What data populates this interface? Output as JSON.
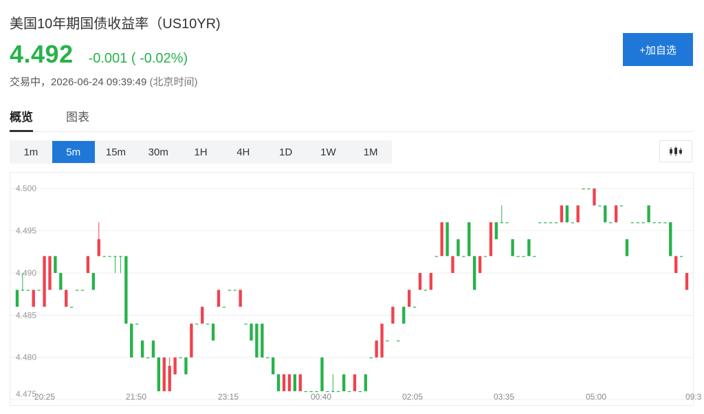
{
  "header": {
    "title": "美国10年期国债收益率（US10YR)",
    "price": "4.492",
    "change": "-0.001 ( -0.02%)",
    "status": "交易中，2026-06-24 09:39:49",
    "timezone": "(北京时间)",
    "add_label": "+加自选"
  },
  "tabs": [
    {
      "label": "概览",
      "active": true
    },
    {
      "label": "图表",
      "active": false
    }
  ],
  "timeframes": [
    {
      "label": "1m",
      "active": false
    },
    {
      "label": "5m",
      "active": true
    },
    {
      "label": "15m",
      "active": false
    },
    {
      "label": "30m",
      "active": false
    },
    {
      "label": "1H",
      "active": false
    },
    {
      "label": "4H",
      "active": false
    },
    {
      "label": "1D",
      "active": false
    },
    {
      "label": "1W",
      "active": false
    },
    {
      "label": "1M",
      "active": false
    }
  ],
  "icons": {
    "chart_type": "candlestick-icon"
  },
  "colors": {
    "up": "#f0424e",
    "down": "#27b24a",
    "accent": "#1f78d8"
  },
  "chart_data": {
    "type": "candlestick",
    "y_ticks": [
      "4.500",
      "4.495",
      "4.490",
      "4.485",
      "4.480",
      "4.475"
    ],
    "x_ticks": [
      "20:25",
      "21:50",
      "23:15",
      "00:40",
      "02:05",
      "03:35",
      "05:00",
      "09:3"
    ],
    "ylim": [
      4.4755,
      4.5005
    ],
    "grid": true,
    "candles": [
      [
        4.488,
        4.486,
        4.488,
        4.486
      ],
      [
        4.488,
        4.488,
        4.49,
        4.488
      ],
      [
        4.488,
        4.488,
        4.488,
        4.488
      ],
      [
        4.486,
        4.488,
        4.488,
        4.486
      ],
      [
        4.488,
        4.488,
        4.488,
        4.488
      ],
      [
        4.486,
        4.492,
        4.492,
        4.486
      ],
      [
        4.488,
        4.492,
        4.492,
        4.488
      ],
      [
        4.492,
        4.49,
        4.492,
        4.49
      ],
      [
        4.49,
        4.488,
        4.49,
        4.488
      ],
      [
        4.486,
        4.488,
        4.488,
        4.486
      ],
      [
        4.486,
        4.486,
        4.486,
        4.486
      ],
      [
        4.488,
        4.488,
        4.488,
        4.488
      ],
      [
        4.488,
        4.488,
        4.488,
        4.488
      ],
      [
        4.49,
        4.492,
        4.492,
        4.49
      ],
      [
        4.49,
        4.488,
        4.49,
        4.488
      ],
      [
        4.492,
        4.494,
        4.496,
        4.492
      ],
      [
        4.492,
        4.492,
        4.492,
        4.492
      ],
      [
        4.492,
        4.492,
        4.492,
        4.492
      ],
      [
        4.492,
        4.492,
        4.492,
        4.49
      ],
      [
        4.492,
        4.492,
        4.492,
        4.49
      ],
      [
        4.492,
        4.484,
        4.492,
        4.484
      ],
      [
        4.484,
        4.48,
        4.484,
        4.48
      ],
      [
        4.484,
        4.484,
        4.484,
        4.484
      ],
      [
        4.482,
        4.48,
        4.482,
        4.48
      ],
      [
        4.48,
        4.48,
        4.48,
        4.48
      ],
      [
        4.482,
        4.48,
        4.482,
        4.48
      ],
      [
        4.48,
        4.476,
        4.48,
        4.476
      ],
      [
        4.476,
        4.48,
        4.48,
        4.476
      ],
      [
        4.476,
        4.479,
        4.48,
        4.476
      ],
      [
        4.478,
        4.48,
        4.48,
        4.478
      ],
      [
        4.48,
        4.48,
        4.48,
        4.48
      ],
      [
        4.48,
        4.478,
        4.48,
        4.478
      ],
      [
        4.48,
        4.484,
        4.484,
        4.48
      ],
      [
        4.484,
        4.484,
        4.484,
        4.484
      ],
      [
        4.484,
        4.486,
        4.486,
        4.484
      ],
      [
        4.484,
        4.484,
        4.484,
        4.484
      ],
      [
        4.484,
        4.482,
        4.484,
        4.482
      ],
      [
        4.486,
        4.488,
        4.488,
        4.486
      ],
      [
        4.486,
        4.486,
        4.486,
        4.486
      ],
      [
        4.488,
        4.488,
        4.488,
        4.488
      ],
      [
        4.488,
        4.488,
        4.488,
        4.488
      ],
      [
        4.486,
        4.488,
        4.488,
        4.486
      ],
      [
        4.484,
        4.484,
        4.484,
        4.484
      ],
      [
        4.484,
        4.482,
        4.484,
        4.482
      ],
      [
        4.484,
        4.48,
        4.484,
        4.48
      ],
      [
        4.484,
        4.48,
        4.484,
        4.48
      ],
      [
        4.48,
        4.48,
        4.48,
        4.48
      ],
      [
        4.48,
        4.478,
        4.48,
        4.478
      ],
      [
        4.478,
        4.476,
        4.478,
        4.476
      ],
      [
        4.476,
        4.478,
        4.478,
        4.476
      ],
      [
        4.476,
        4.478,
        4.478,
        4.476
      ],
      [
        4.478,
        4.476,
        4.478,
        4.476
      ],
      [
        4.476,
        4.478,
        4.478,
        4.476
      ],
      [
        4.476,
        4.476,
        4.476,
        4.476
      ],
      [
        4.476,
        4.476,
        4.476,
        4.476
      ],
      [
        4.476,
        4.476,
        4.476,
        4.476
      ],
      [
        4.48,
        4.476,
        4.48,
        4.476
      ],
      [
        4.476,
        4.476,
        4.476,
        4.476
      ],
      [
        4.476,
        4.476,
        4.478,
        4.476
      ],
      [
        4.476,
        4.476,
        4.476,
        4.476
      ],
      [
        4.478,
        4.476,
        4.478,
        4.476
      ],
      [
        4.476,
        4.476,
        4.476,
        4.476
      ],
      [
        4.476,
        4.478,
        4.478,
        4.476
      ],
      [
        4.476,
        4.476,
        4.476,
        4.476
      ],
      [
        4.478,
        4.476,
        4.478,
        4.476
      ],
      [
        4.48,
        4.48,
        4.48,
        4.48
      ],
      [
        4.48,
        4.482,
        4.482,
        4.48
      ],
      [
        4.48,
        4.484,
        4.484,
        4.48
      ],
      [
        4.482,
        4.482,
        4.482,
        4.482
      ],
      [
        4.484,
        4.486,
        4.486,
        4.484
      ],
      [
        4.482,
        4.482,
        4.482,
        4.482
      ],
      [
        4.486,
        4.484,
        4.486,
        4.484
      ],
      [
        4.486,
        4.488,
        4.488,
        4.486
      ],
      [
        4.486,
        4.486,
        4.486,
        4.486
      ],
      [
        4.488,
        4.49,
        4.49,
        4.488
      ],
      [
        4.488,
        4.488,
        4.488,
        4.488
      ],
      [
        4.488,
        4.49,
        4.49,
        4.488
      ],
      [
        4.492,
        4.492,
        4.492,
        4.492
      ],
      [
        4.492,
        4.496,
        4.496,
        4.492
      ],
      [
        4.496,
        4.492,
        4.496,
        4.492
      ],
      [
        4.49,
        4.492,
        4.492,
        4.49
      ],
      [
        4.494,
        4.492,
        4.494,
        4.492
      ],
      [
        4.492,
        4.492,
        4.492,
        4.492
      ],
      [
        4.496,
        4.492,
        4.496,
        4.492
      ],
      [
        4.492,
        4.488,
        4.492,
        4.488
      ],
      [
        4.49,
        4.492,
        4.492,
        4.49
      ],
      [
        4.492,
        4.492,
        4.492,
        4.492
      ],
      [
        4.492,
        4.496,
        4.496,
        4.492
      ],
      [
        4.496,
        4.494,
        4.496,
        4.494
      ],
      [
        4.496,
        4.496,
        4.498,
        4.496
      ],
      [
        4.496,
        4.496,
        4.496,
        4.496
      ],
      [
        4.494,
        4.492,
        4.494,
        4.492
      ],
      [
        4.492,
        4.492,
        4.492,
        4.492
      ],
      [
        4.492,
        4.492,
        4.492,
        4.492
      ],
      [
        4.494,
        4.492,
        4.494,
        4.492
      ],
      [
        4.492,
        4.492,
        4.492,
        4.492
      ],
      [
        4.496,
        4.496,
        4.496,
        4.496
      ],
      [
        4.496,
        4.496,
        4.496,
        4.496
      ],
      [
        4.496,
        4.496,
        4.496,
        4.496
      ],
      [
        4.496,
        4.496,
        4.496,
        4.496
      ],
      [
        4.496,
        4.498,
        4.498,
        4.496
      ],
      [
        4.498,
        4.496,
        4.498,
        4.496
      ],
      [
        4.496,
        4.496,
        4.496,
        4.496
      ],
      [
        4.496,
        4.498,
        4.498,
        4.496
      ],
      [
        4.5,
        4.5,
        4.5,
        4.5
      ],
      [
        4.5,
        4.5,
        4.5,
        4.5
      ],
      [
        4.498,
        4.5,
        4.5,
        4.498
      ],
      [
        4.498,
        4.498,
        4.498,
        4.498
      ],
      [
        4.498,
        4.496,
        4.498,
        4.496
      ],
      [
        4.496,
        4.496,
        4.496,
        4.496
      ],
      [
        4.496,
        4.498,
        4.498,
        4.496
      ],
      [
        4.498,
        4.498,
        4.498,
        4.498
      ],
      [
        4.494,
        4.492,
        4.494,
        4.492
      ],
      [
        4.496,
        4.496,
        4.496,
        4.496
      ],
      [
        4.496,
        4.496,
        4.496,
        4.496
      ],
      [
        4.496,
        4.496,
        4.496,
        4.496
      ],
      [
        4.498,
        4.496,
        4.498,
        4.496
      ],
      [
        4.496,
        4.496,
        4.496,
        4.496
      ],
      [
        4.496,
        4.496,
        4.496,
        4.496
      ],
      [
        4.496,
        4.496,
        4.496,
        4.496
      ],
      [
        4.496,
        4.492,
        4.496,
        4.492
      ],
      [
        4.49,
        4.492,
        4.492,
        4.49
      ],
      [
        4.492,
        4.492,
        4.492,
        4.492
      ],
      [
        4.488,
        4.49,
        4.49,
        4.488
      ]
    ]
  }
}
